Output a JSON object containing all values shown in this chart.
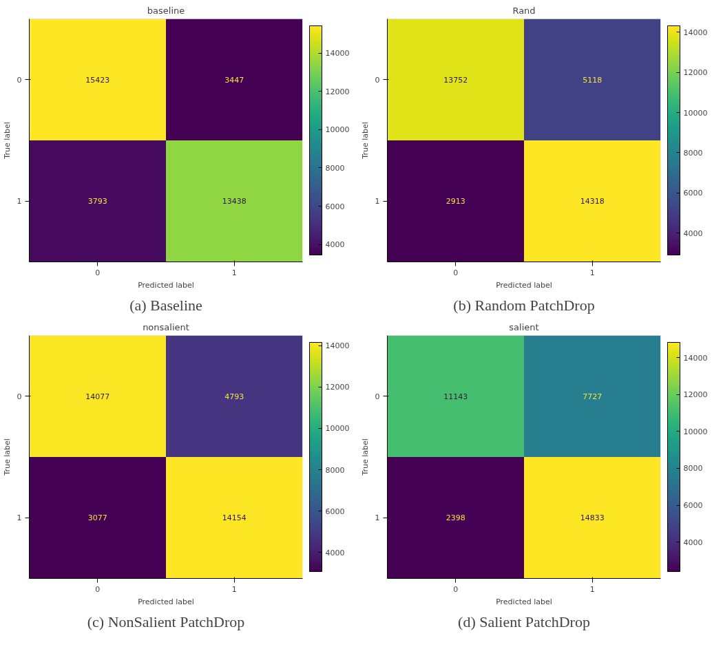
{
  "chart_data": [
    {
      "type": "heatmap",
      "title": "baseline",
      "xlabel": "Predicted label",
      "ylabel": "True label",
      "categories": [
        "0",
        "1"
      ],
      "y_categories": [
        "0",
        "1"
      ],
      "cells": [
        [
          15423,
          3447
        ],
        [
          3793,
          13438
        ]
      ],
      "clim": [
        3447,
        15423
      ],
      "cticks": [
        4000,
        6000,
        8000,
        10000,
        12000,
        14000
      ],
      "data_labels": true,
      "annotations": [
        "(a) Baseline"
      ]
    },
    {
      "type": "heatmap",
      "title": "Rand",
      "xlabel": "Predicted label",
      "ylabel": "True label",
      "categories": [
        "0",
        "1"
      ],
      "y_categories": [
        "0",
        "1"
      ],
      "cells": [
        [
          13752,
          5118
        ],
        [
          2913,
          14318
        ]
      ],
      "clim": [
        2913,
        14318
      ],
      "cticks": [
        4000,
        6000,
        8000,
        10000,
        12000,
        14000
      ],
      "data_labels": true,
      "annotations": [
        "(b) Random PatchDrop"
      ]
    },
    {
      "type": "heatmap",
      "title": "nonsalient",
      "xlabel": "Predicted label",
      "ylabel": "True label",
      "categories": [
        "0",
        "1"
      ],
      "y_categories": [
        "0",
        "1"
      ],
      "cells": [
        [
          14077,
          4793
        ],
        [
          3077,
          14154
        ]
      ],
      "clim": [
        3077,
        14154
      ],
      "cticks": [
        4000,
        6000,
        8000,
        10000,
        12000,
        14000
      ],
      "data_labels": true,
      "annotations": [
        "(c) NonSalient PatchDrop"
      ]
    },
    {
      "type": "heatmap",
      "title": "salient",
      "xlabel": "Predicted label",
      "ylabel": "True label",
      "categories": [
        "0",
        "1"
      ],
      "y_categories": [
        "0",
        "1"
      ],
      "cells": [
        [
          11143,
          7727
        ],
        [
          2398,
          14833
        ]
      ],
      "clim": [
        2398,
        14833
      ],
      "cticks": [
        4000,
        6000,
        8000,
        10000,
        12000,
        14000
      ],
      "data_labels": true,
      "annotations": [
        "(d) Salient PatchDrop"
      ]
    }
  ]
}
